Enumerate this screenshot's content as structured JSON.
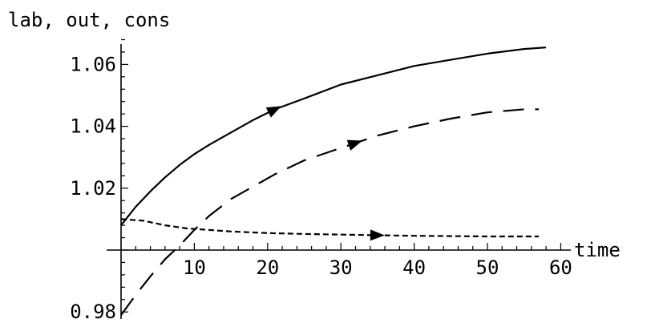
{
  "chart_data": {
    "type": "line",
    "title": "",
    "xlabel": "time",
    "ylabel": "lab, out, cons",
    "xlim": [
      -2,
      60
    ],
    "ylim": [
      0.979,
      1.068
    ],
    "x_axis_crossing_y": 1.0,
    "x_ticks": [
      10,
      20,
      30,
      40,
      50,
      60
    ],
    "x_tick_labels": [
      "10",
      "20",
      "30",
      "40",
      "50",
      "60"
    ],
    "y_ticks": [
      0.98,
      1.02,
      1.04,
      1.06
    ],
    "y_tick_labels": [
      "0.98",
      "1.02",
      "1.04",
      "1.06"
    ],
    "grid": false,
    "legend": "none",
    "series": [
      {
        "style": "solid",
        "arrow_at_x": 21,
        "x": [
          0,
          2,
          4,
          6,
          8,
          10,
          12,
          15,
          18,
          21,
          25,
          30,
          35,
          40,
          45,
          50,
          55,
          58
        ],
        "y": [
          1.008,
          1.014,
          1.019,
          1.0235,
          1.0275,
          1.031,
          1.034,
          1.038,
          1.042,
          1.0455,
          1.049,
          1.0535,
          1.0565,
          1.0595,
          1.0615,
          1.0635,
          1.065,
          1.0655
        ]
      },
      {
        "style": "long-dash",
        "arrow_at_x": 32,
        "x": [
          0,
          2,
          4,
          6,
          8,
          10,
          12,
          15,
          18,
          21,
          25,
          30,
          35,
          40,
          45,
          50,
          55,
          57
        ],
        "y": [
          0.979,
          0.9855,
          0.9915,
          0.997,
          1.0015,
          1.0065,
          1.011,
          1.0165,
          1.0205,
          1.0245,
          1.029,
          1.033,
          1.037,
          1.04,
          1.0425,
          1.0445,
          1.0455,
          1.0455
        ]
      },
      {
        "style": "short-dash",
        "arrow_at_x": 35,
        "x": [
          0,
          3,
          6,
          9,
          12,
          15,
          20,
          25,
          30,
          35,
          40,
          45,
          50,
          55,
          57
        ],
        "y": [
          1.01,
          1.0095,
          1.008,
          1.007,
          1.0065,
          1.006,
          1.0055,
          1.0052,
          1.005,
          1.0048,
          1.0046,
          1.0045,
          1.0044,
          1.0044,
          1.0044
        ]
      }
    ]
  }
}
